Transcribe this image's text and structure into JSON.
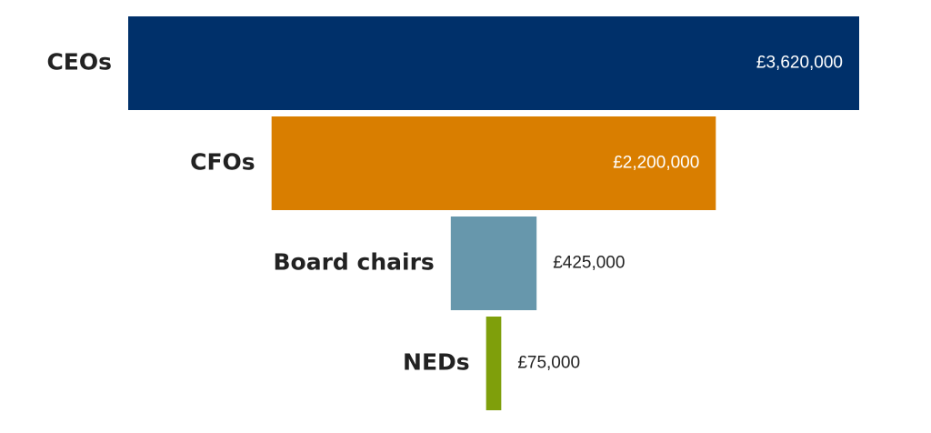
{
  "chart_data": {
    "type": "funnel",
    "categories": [
      "CEOs",
      "CFOs",
      "Board chairs",
      "NEDs"
    ],
    "values": [
      3620000,
      2200000,
      425000,
      75000
    ],
    "value_labels": [
      "£3,620,000",
      "£2,200,000",
      "£425,000",
      "£75,000"
    ],
    "colors": [
      "#00306a",
      "#d97e00",
      "#6797ac",
      "#7f9f0b"
    ]
  }
}
